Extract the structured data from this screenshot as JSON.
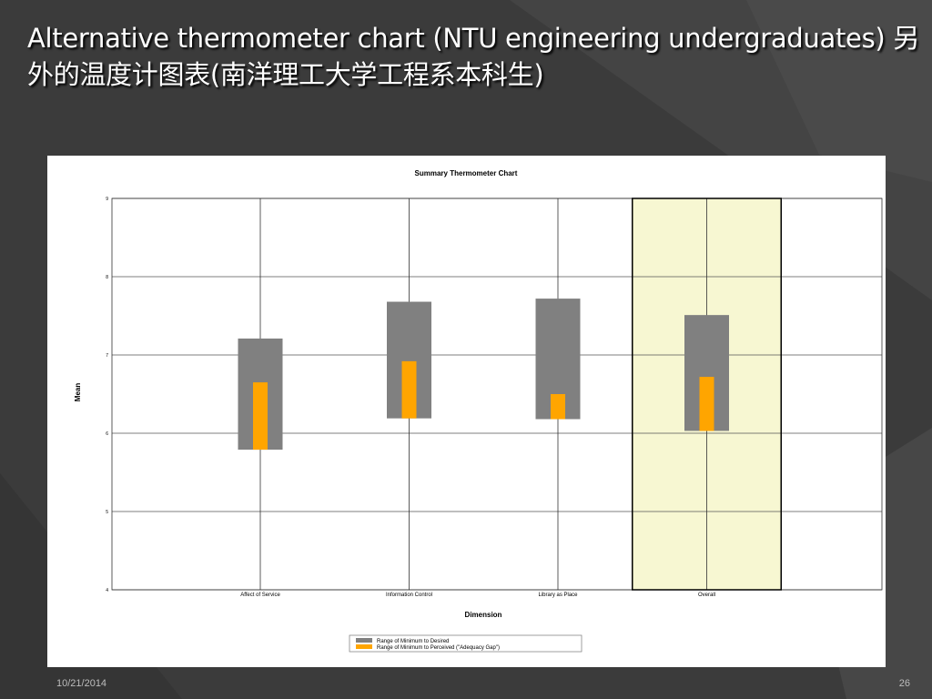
{
  "slide": {
    "title": "Alternative thermometer chart (NTU engineering undergraduates) 另外的温度计图表(南洋理工大学工程系本科生)",
    "date": "10/21/2014",
    "page_number": "26"
  },
  "colors": {
    "range_desired": "#808080",
    "range_perceived": "#ffa500",
    "highlight": "#f7f7d2"
  },
  "chart_data": {
    "type": "bar",
    "title": "Summary Thermometer Chart",
    "xlabel": "Dimension",
    "ylabel": "Mean",
    "ylim": [
      4,
      9
    ],
    "yticks": [
      "4",
      "5",
      "6",
      "7",
      "8",
      "9"
    ],
    "grid": true,
    "legend_position": "bottom",
    "categories": [
      "Affect of Service",
      "Information Control",
      "Library as Place",
      "Overall"
    ],
    "highlighted_category": "Overall",
    "series": [
      {
        "name": "Range of Minimum to Desired",
        "low": [
          5.79,
          6.19,
          6.18,
          6.03
        ],
        "high": [
          7.21,
          7.68,
          7.72,
          7.51
        ]
      },
      {
        "name": "Range of Minimum to Perceived (\"Adequacy Gap\")",
        "low": [
          5.79,
          6.19,
          6.18,
          6.03
        ],
        "high": [
          6.65,
          6.92,
          6.5,
          6.72
        ]
      }
    ]
  }
}
